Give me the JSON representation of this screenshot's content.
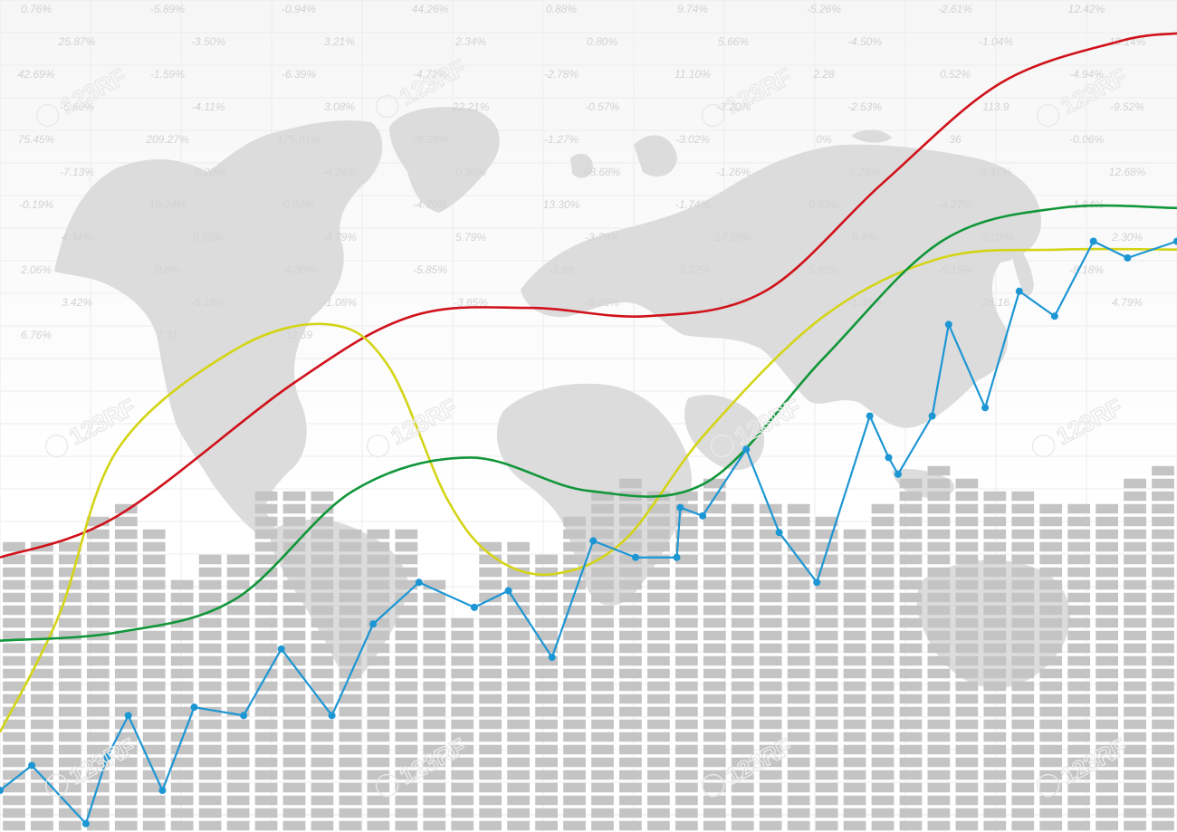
{
  "watermark": "123RF",
  "background_labels": [
    "0.76%",
    "-5.89%",
    "-0.94%",
    "44.26%",
    "0.88%",
    "9.74%",
    "-5.26%",
    "-2.61%",
    "12.42%",
    "25.87%",
    "-3.50%",
    "3.21%",
    "2.34%",
    "0.80%",
    "5.66%",
    "-4.50%",
    "-1.04%",
    "10.14%",
    "42.69%",
    "-1.59%",
    "-6.39%",
    "-4.72%",
    "-2.78%",
    "11.10%",
    "2.28",
    "0.52%",
    "-4.94%",
    "-5.60%",
    "-4.11%",
    "3.08%",
    "22.21%",
    "-0.57%",
    "-3.20%",
    "-2.53%",
    "113.9",
    "-9.52%",
    "75.45%",
    "209.27%",
    "175.01%",
    "76.26%",
    "-1.27%",
    "-3.02%",
    "0%",
    "36",
    "-0.06%",
    "-7.13%",
    "-0.20%",
    "-4.26%",
    "0.38%",
    "68.68%",
    "-1.26%",
    "5.28%",
    "0.37%",
    "12.68%",
    "-0.19%",
    "10.24%",
    "0.62%",
    "-4.70%",
    "13.30%",
    "-1.74%",
    "0.63%",
    "-4.27%",
    "-1.84%",
    "4.34%",
    "0.85%",
    "-4.79%",
    "5.79%",
    "-3.79%",
    "17.56%",
    "0.6%",
    "-5.03%",
    "2.30%",
    "2.06%",
    "0.8%",
    "-4.30%",
    "-5.85%",
    "-1.99",
    "-3.72%",
    "5.85%",
    "-5.15%",
    "-8.18%",
    "3.42%",
    "-5.18%",
    "-1.08%",
    "-3.85%",
    "-6.25%",
    "1.48%",
    "-1.38%",
    "25.16",
    "4.79%",
    "6.76%",
    "7.31",
    "12.69"
  ],
  "chart_data": {
    "type": "line",
    "title": "",
    "xlabel": "",
    "ylabel": "",
    "grid": true,
    "legend": "none",
    "xlim": [
      0,
      100
    ],
    "ylim": [
      0,
      100
    ],
    "series": [
      {
        "color": "#d0121b",
        "smooth": true,
        "markers": false,
        "x": [
          0,
          10,
          25,
          35,
          45,
          55,
          65,
          75,
          85,
          95,
          100
        ],
        "y": [
          33,
          38,
          54,
          62,
          63,
          62,
          65,
          78,
          90,
          95,
          96
        ]
      },
      {
        "color": "#d4d417",
        "smooth": true,
        "markers": false,
        "x": [
          0,
          5,
          10,
          20,
          28,
          33,
          38,
          42,
          47,
          53,
          60,
          70,
          80,
          90,
          100
        ],
        "y": [
          12,
          26,
          46,
          58,
          61,
          56,
          40,
          33,
          31,
          35,
          48,
          62,
          69,
          70,
          70
        ]
      },
      {
        "color": "#11963a",
        "smooth": true,
        "markers": false,
        "x": [
          0,
          10,
          20,
          30,
          40,
          50,
          60,
          70,
          80,
          90,
          100
        ],
        "y": [
          23,
          24,
          28,
          41,
          45,
          41,
          42,
          57,
          71,
          75,
          75
        ]
      },
      {
        "color": "#1d96d4",
        "smooth": false,
        "markers": true,
        "x": [
          0,
          2.7,
          7.3,
          9.1,
          10.9,
          13.8,
          16.5,
          20.7,
          23.9,
          28.2,
          31.7,
          35.6,
          40.3,
          43.2,
          46.9,
          50.4,
          54.0,
          57.5,
          57.8,
          59.7,
          63.4,
          66.2,
          69.4,
          73.9,
          75.5,
          76.3,
          79.2,
          80.6,
          83.7,
          86.6,
          89.6,
          92.9,
          95.8,
          100
        ],
        "y": [
          5,
          8,
          1,
          9,
          14,
          5,
          15,
          14,
          22,
          14,
          25,
          30,
          27,
          29,
          21,
          35,
          33,
          33,
          39,
          38,
          46,
          36,
          30,
          50,
          45,
          43,
          50,
          61,
          51,
          65,
          62,
          71,
          69,
          71
        ]
      }
    ],
    "bars": {
      "color": "#c4c4c4",
      "values": [
        36,
        36,
        36,
        39,
        40,
        38,
        31,
        34,
        34,
        42,
        42,
        42,
        38,
        37,
        38,
        31,
        26,
        36,
        36,
        34,
        39,
        42,
        43,
        42,
        42,
        43,
        41,
        41,
        40,
        39,
        38,
        40,
        44,
        45,
        44,
        42,
        42,
        41,
        41,
        40,
        43,
        45
      ]
    }
  }
}
